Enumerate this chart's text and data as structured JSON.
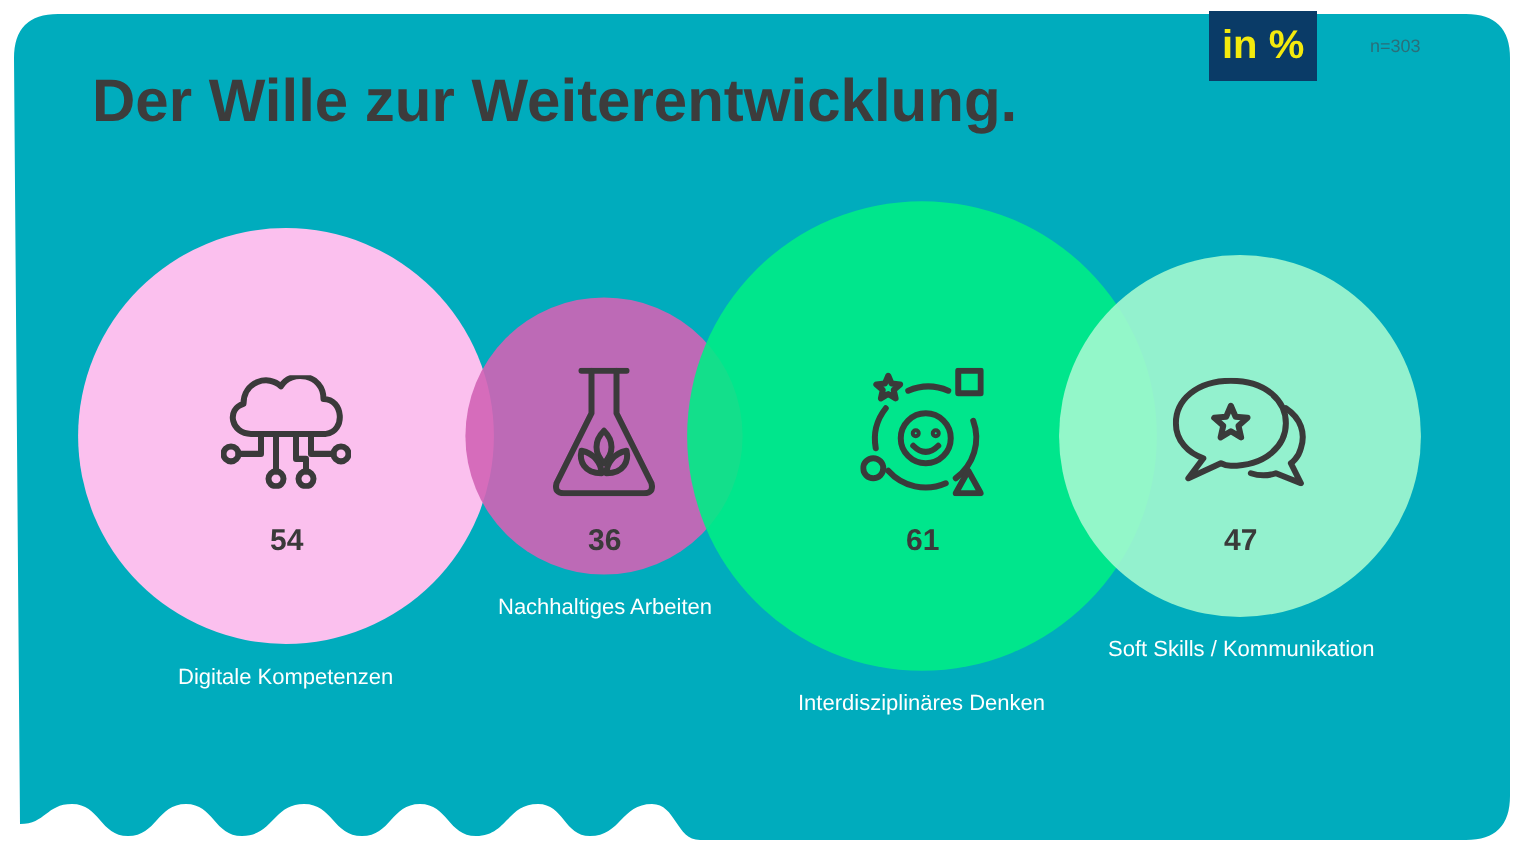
{
  "chart_data": {
    "type": "other",
    "title": "Der Wille zur Weiterentwicklung.",
    "categories": [
      "Digitale Kompetenzen",
      "Nachhaltiges Arbeiten",
      "Interdisziplinäres Denken",
      "Soft Skills / Kommunikation"
    ],
    "values": [
      54,
      36,
      61,
      47
    ],
    "colors": [
      "#fbc0ee",
      "#d163b5",
      "#00ec86",
      "#a3f8cf"
    ],
    "data_labels": true,
    "annotations": [
      "in %",
      "n=303"
    ]
  }
}
